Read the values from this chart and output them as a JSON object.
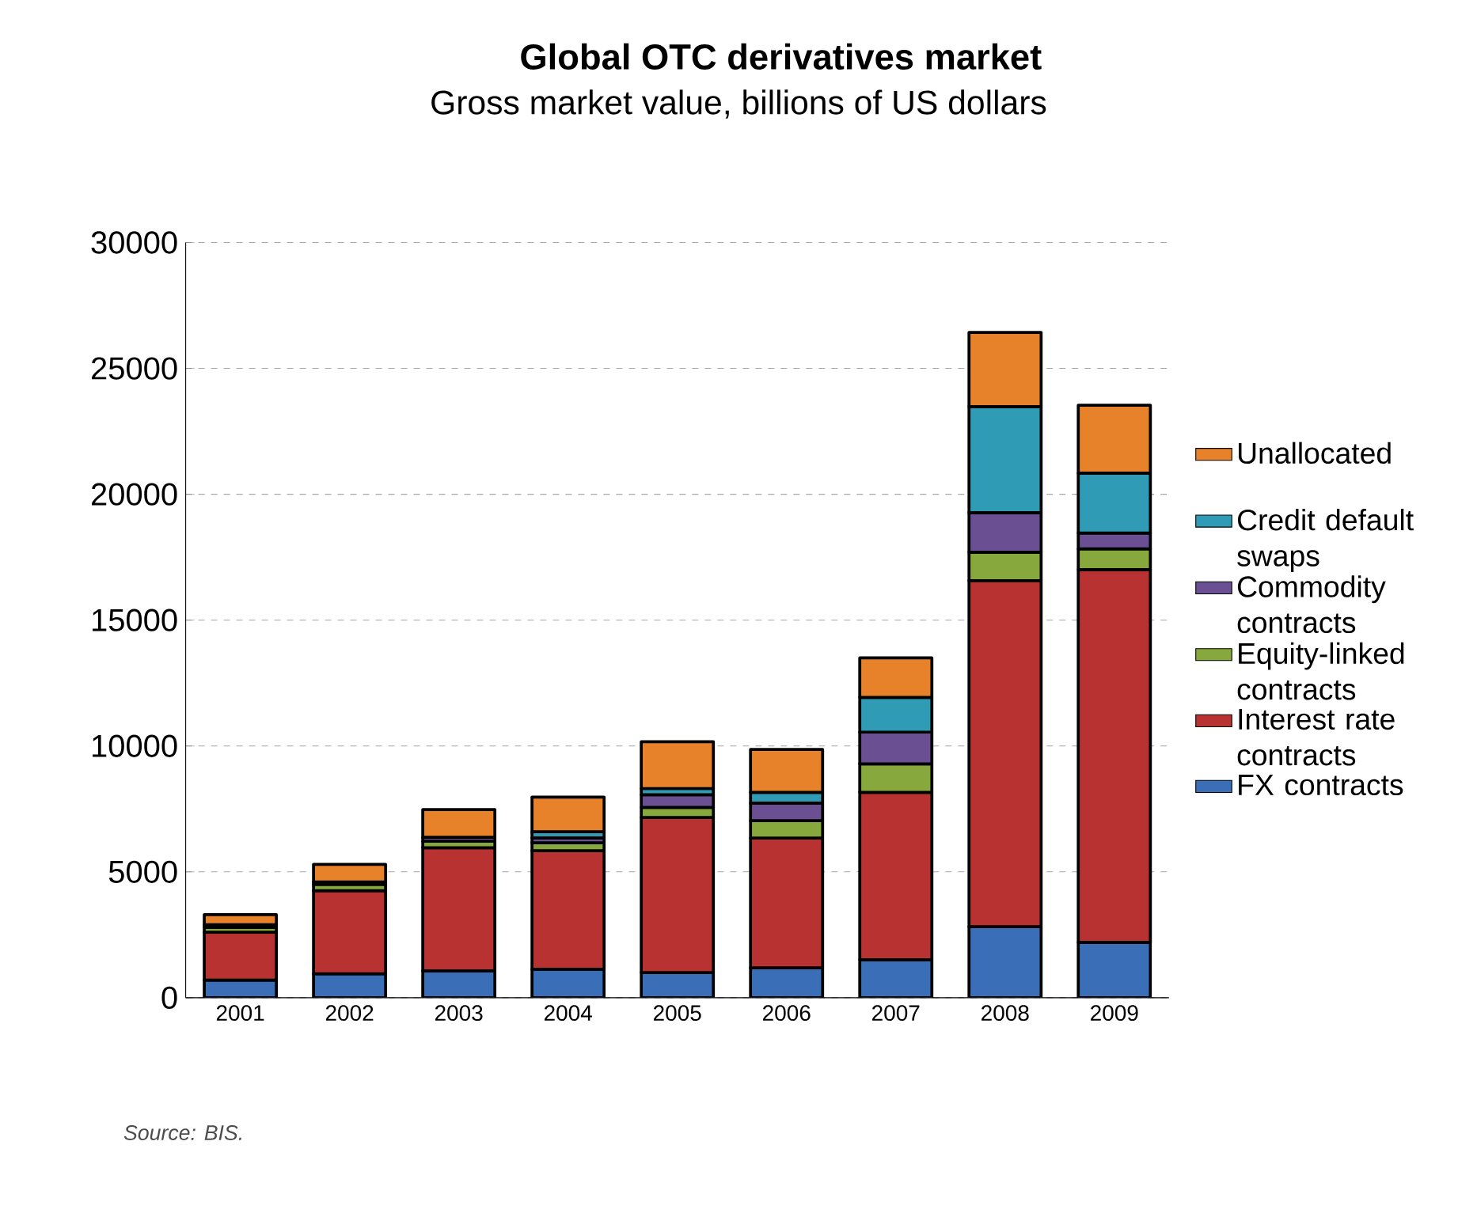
{
  "chart_data": {
    "type": "bar",
    "stacked": true,
    "title": "Global OTC derivatives market",
    "subtitle": "Gross market value, billions of US dollars",
    "categories": [
      "2001",
      "2002",
      "2003",
      "2004",
      "2005",
      "2006",
      "2007",
      "2008",
      "2009"
    ],
    "series": [
      {
        "name": "FX contracts",
        "color": "#3a6fb7",
        "values": [
          700,
          950,
          1070,
          1130,
          1000,
          1190,
          1510,
          2820,
          2200
        ]
      },
      {
        "name": "Interest rate contracts",
        "color": "#b83232",
        "values": [
          1900,
          3300,
          4890,
          4710,
          6160,
          5150,
          6650,
          13750,
          14810
        ]
      },
      {
        "name": "Equity-linked contracts",
        "color": "#86a83c",
        "values": [
          200,
          250,
          260,
          310,
          400,
          690,
          1130,
          1130,
          820
        ]
      },
      {
        "name": "Commodity contracts",
        "color": "#6a4f93",
        "values": [
          100,
          100,
          150,
          200,
          500,
          700,
          1260,
          1570,
          630
        ]
      },
      {
        "name": "Credit default swaps",
        "color": "#2f9bb5",
        "values": [
          null,
          null,
          null,
          240,
          250,
          430,
          1380,
          4210,
          2380
        ]
      },
      {
        "name": "Unallocated",
        "color": "#e8822a",
        "values": [
          400,
          700,
          1100,
          1380,
          1860,
          1700,
          1570,
          2950,
          2700
        ]
      }
    ],
    "ylim": [
      0,
      30000
    ],
    "yticks": [
      0,
      5000,
      10000,
      15000,
      20000,
      25000,
      30000
    ],
    "grid": "y",
    "legend": "right",
    "annotations": [
      "Source: BIS."
    ]
  }
}
